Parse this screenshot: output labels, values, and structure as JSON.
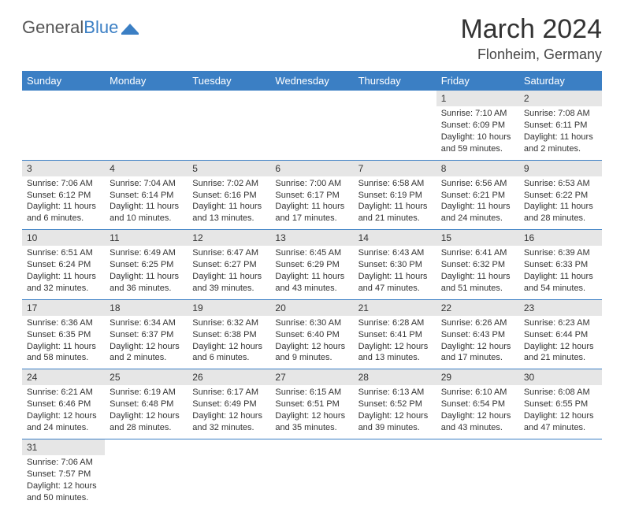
{
  "logo": {
    "general": "General",
    "blue": "Blue"
  },
  "title": "March 2024",
  "location": "Flonheim, Germany",
  "weekdays": [
    "Sunday",
    "Monday",
    "Tuesday",
    "Wednesday",
    "Thursday",
    "Friday",
    "Saturday"
  ],
  "colors": {
    "header_bg": "#3b7fc4",
    "header_text": "#ffffff",
    "daynum_bg": "#e6e6e6",
    "border": "#3b7fc4",
    "logo_blue": "#3b7fc4"
  },
  "grid": [
    [
      null,
      null,
      null,
      null,
      null,
      {
        "n": "1",
        "sr": "Sunrise: 7:10 AM",
        "ss": "Sunset: 6:09 PM",
        "dl": "Daylight: 10 hours and 59 minutes."
      },
      {
        "n": "2",
        "sr": "Sunrise: 7:08 AM",
        "ss": "Sunset: 6:11 PM",
        "dl": "Daylight: 11 hours and 2 minutes."
      }
    ],
    [
      {
        "n": "3",
        "sr": "Sunrise: 7:06 AM",
        "ss": "Sunset: 6:12 PM",
        "dl": "Daylight: 11 hours and 6 minutes."
      },
      {
        "n": "4",
        "sr": "Sunrise: 7:04 AM",
        "ss": "Sunset: 6:14 PM",
        "dl": "Daylight: 11 hours and 10 minutes."
      },
      {
        "n": "5",
        "sr": "Sunrise: 7:02 AM",
        "ss": "Sunset: 6:16 PM",
        "dl": "Daylight: 11 hours and 13 minutes."
      },
      {
        "n": "6",
        "sr": "Sunrise: 7:00 AM",
        "ss": "Sunset: 6:17 PM",
        "dl": "Daylight: 11 hours and 17 minutes."
      },
      {
        "n": "7",
        "sr": "Sunrise: 6:58 AM",
        "ss": "Sunset: 6:19 PM",
        "dl": "Daylight: 11 hours and 21 minutes."
      },
      {
        "n": "8",
        "sr": "Sunrise: 6:56 AM",
        "ss": "Sunset: 6:21 PM",
        "dl": "Daylight: 11 hours and 24 minutes."
      },
      {
        "n": "9",
        "sr": "Sunrise: 6:53 AM",
        "ss": "Sunset: 6:22 PM",
        "dl": "Daylight: 11 hours and 28 minutes."
      }
    ],
    [
      {
        "n": "10",
        "sr": "Sunrise: 6:51 AM",
        "ss": "Sunset: 6:24 PM",
        "dl": "Daylight: 11 hours and 32 minutes."
      },
      {
        "n": "11",
        "sr": "Sunrise: 6:49 AM",
        "ss": "Sunset: 6:25 PM",
        "dl": "Daylight: 11 hours and 36 minutes."
      },
      {
        "n": "12",
        "sr": "Sunrise: 6:47 AM",
        "ss": "Sunset: 6:27 PM",
        "dl": "Daylight: 11 hours and 39 minutes."
      },
      {
        "n": "13",
        "sr": "Sunrise: 6:45 AM",
        "ss": "Sunset: 6:29 PM",
        "dl": "Daylight: 11 hours and 43 minutes."
      },
      {
        "n": "14",
        "sr": "Sunrise: 6:43 AM",
        "ss": "Sunset: 6:30 PM",
        "dl": "Daylight: 11 hours and 47 minutes."
      },
      {
        "n": "15",
        "sr": "Sunrise: 6:41 AM",
        "ss": "Sunset: 6:32 PM",
        "dl": "Daylight: 11 hours and 51 minutes."
      },
      {
        "n": "16",
        "sr": "Sunrise: 6:39 AM",
        "ss": "Sunset: 6:33 PM",
        "dl": "Daylight: 11 hours and 54 minutes."
      }
    ],
    [
      {
        "n": "17",
        "sr": "Sunrise: 6:36 AM",
        "ss": "Sunset: 6:35 PM",
        "dl": "Daylight: 11 hours and 58 minutes."
      },
      {
        "n": "18",
        "sr": "Sunrise: 6:34 AM",
        "ss": "Sunset: 6:37 PM",
        "dl": "Daylight: 12 hours and 2 minutes."
      },
      {
        "n": "19",
        "sr": "Sunrise: 6:32 AM",
        "ss": "Sunset: 6:38 PM",
        "dl": "Daylight: 12 hours and 6 minutes."
      },
      {
        "n": "20",
        "sr": "Sunrise: 6:30 AM",
        "ss": "Sunset: 6:40 PM",
        "dl": "Daylight: 12 hours and 9 minutes."
      },
      {
        "n": "21",
        "sr": "Sunrise: 6:28 AM",
        "ss": "Sunset: 6:41 PM",
        "dl": "Daylight: 12 hours and 13 minutes."
      },
      {
        "n": "22",
        "sr": "Sunrise: 6:26 AM",
        "ss": "Sunset: 6:43 PM",
        "dl": "Daylight: 12 hours and 17 minutes."
      },
      {
        "n": "23",
        "sr": "Sunrise: 6:23 AM",
        "ss": "Sunset: 6:44 PM",
        "dl": "Daylight: 12 hours and 21 minutes."
      }
    ],
    [
      {
        "n": "24",
        "sr": "Sunrise: 6:21 AM",
        "ss": "Sunset: 6:46 PM",
        "dl": "Daylight: 12 hours and 24 minutes."
      },
      {
        "n": "25",
        "sr": "Sunrise: 6:19 AM",
        "ss": "Sunset: 6:48 PM",
        "dl": "Daylight: 12 hours and 28 minutes."
      },
      {
        "n": "26",
        "sr": "Sunrise: 6:17 AM",
        "ss": "Sunset: 6:49 PM",
        "dl": "Daylight: 12 hours and 32 minutes."
      },
      {
        "n": "27",
        "sr": "Sunrise: 6:15 AM",
        "ss": "Sunset: 6:51 PM",
        "dl": "Daylight: 12 hours and 35 minutes."
      },
      {
        "n": "28",
        "sr": "Sunrise: 6:13 AM",
        "ss": "Sunset: 6:52 PM",
        "dl": "Daylight: 12 hours and 39 minutes."
      },
      {
        "n": "29",
        "sr": "Sunrise: 6:10 AM",
        "ss": "Sunset: 6:54 PM",
        "dl": "Daylight: 12 hours and 43 minutes."
      },
      {
        "n": "30",
        "sr": "Sunrise: 6:08 AM",
        "ss": "Sunset: 6:55 PM",
        "dl": "Daylight: 12 hours and 47 minutes."
      }
    ],
    [
      {
        "n": "31",
        "sr": "Sunrise: 7:06 AM",
        "ss": "Sunset: 7:57 PM",
        "dl": "Daylight: 12 hours and 50 minutes."
      },
      null,
      null,
      null,
      null,
      null,
      null
    ]
  ]
}
